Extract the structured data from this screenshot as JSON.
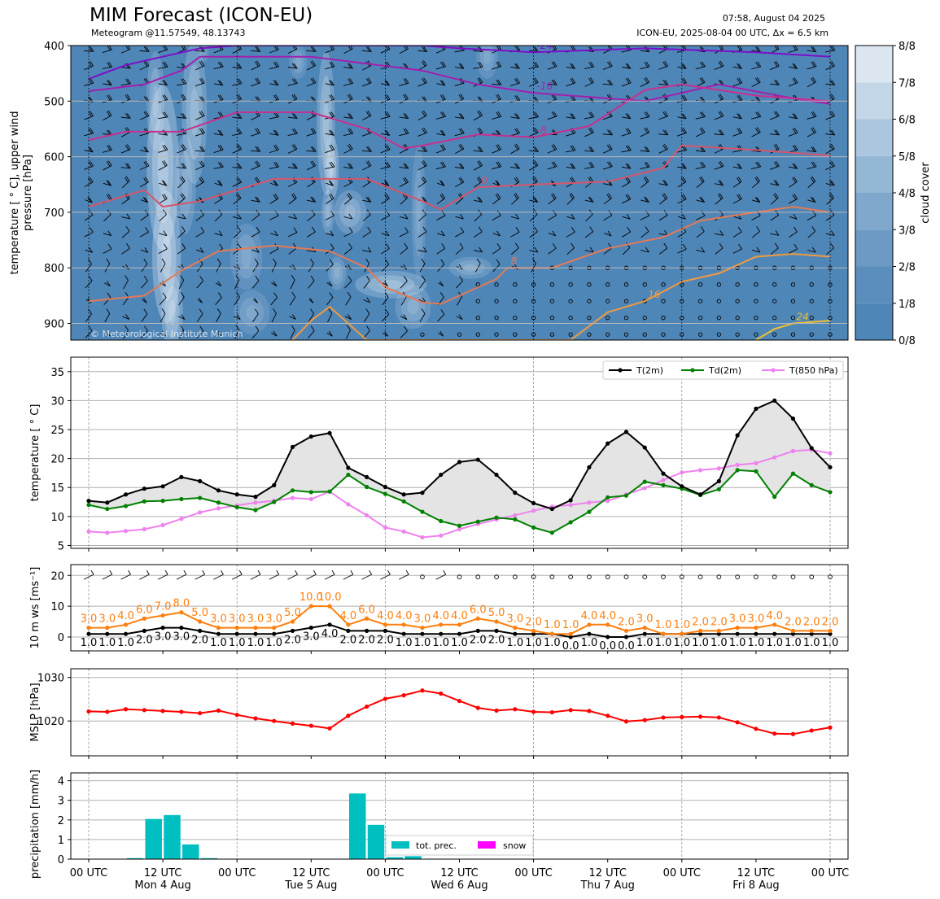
{
  "header": {
    "title": "MIM Forecast (ICON-EU)",
    "subtitle": "Meteogram @11.57549, 48.13743",
    "run_time": "07:58, August 04 2025",
    "run_info": "ICON-EU, 2025-08-04 00 UTC, Δx = 6.5 km",
    "watermark": "© Meteorological Institute Munich"
  },
  "colors": {
    "cloud_base": "#4f86b8",
    "cloud_light": "#e8f0f7",
    "t2m": "#000000",
    "td2m": "#008000",
    "t850": "#ee82ee",
    "wind_max": "#ff7f0e",
    "wind_mean": "#000000",
    "mslp": "#ff0000",
    "precip": "#00bfc0",
    "snow": "#ff00ff"
  },
  "chart_data": [
    {
      "type": "heatmap",
      "name": "upper-air",
      "ylabel": "temperature [$^\\circ$C], upper wind\npressure [hPa]",
      "ylabel_lines": [
        "temperature [ ° C], upper wind",
        "pressure [hPa]"
      ],
      "ylim": [
        930,
        400
      ],
      "yticks": [
        400,
        500,
        600,
        700,
        800,
        900
      ],
      "colorbar_label": "cloud cover",
      "colorbar_ticks": [
        "0/8",
        "1/8",
        "2/8",
        "3/8",
        "4/8",
        "5/8",
        "6/8",
        "7/8",
        "8/8"
      ],
      "isotherms": [
        {
          "label": "-24",
          "color": "#7b10c8",
          "points": [
            [
              0,
              460
            ],
            [
              2,
              435
            ],
            [
              6,
              405
            ],
            [
              8,
              400
            ],
            [
              18,
              400
            ],
            [
              20,
              405
            ],
            [
              24,
              412
            ],
            [
              30,
              405
            ],
            [
              36,
              412
            ],
            [
              40,
              420
            ]
          ]
        },
        {
          "label": "-16",
          "color": "#a31fae",
          "points": [
            [
              0,
              482
            ],
            [
              3,
              470
            ],
            [
              5,
              445
            ],
            [
              6,
              420
            ],
            [
              12,
              420
            ],
            [
              18,
              445
            ],
            [
              21,
              470
            ],
            [
              24,
              485
            ],
            [
              30,
              500
            ],
            [
              32,
              485
            ],
            [
              34,
              470
            ],
            [
              38,
              495
            ],
            [
              40,
              505
            ]
          ]
        },
        {
          "label": "-8",
          "color": "#c8308e",
          "points": [
            [
              0,
              570
            ],
            [
              2,
              555
            ],
            [
              5,
              555
            ],
            [
              8,
              520
            ],
            [
              12,
              520
            ],
            [
              15,
              550
            ],
            [
              17,
              585
            ],
            [
              18,
              580
            ],
            [
              21,
              560
            ],
            [
              24,
              565
            ],
            [
              27,
              545
            ],
            [
              30,
              480
            ],
            [
              32,
              470
            ],
            [
              34,
              480
            ],
            [
              36,
              490
            ],
            [
              40,
              500
            ]
          ]
        },
        {
          "label": "0",
          "color": "#d7556a",
          "points": [
            [
              0,
              690
            ],
            [
              3,
              660
            ],
            [
              4,
              690
            ],
            [
              6,
              680
            ],
            [
              8,
              660
            ],
            [
              10,
              640
            ],
            [
              15,
              640
            ],
            [
              18,
              680
            ],
            [
              19,
              695
            ],
            [
              21,
              655
            ],
            [
              24,
              650
            ],
            [
              28,
              645
            ],
            [
              31,
              620
            ],
            [
              32,
              580
            ],
            [
              36,
              588
            ],
            [
              40,
              598
            ]
          ]
        },
        {
          "label": "8",
          "color": "#e47a55",
          "points": [
            [
              0,
              860
            ],
            [
              3,
              850
            ],
            [
              5,
              805
            ],
            [
              7,
              770
            ],
            [
              10,
              760
            ],
            [
              13,
              770
            ],
            [
              15,
              800
            ],
            [
              16,
              835
            ],
            [
              18,
              862
            ],
            [
              19,
              865
            ],
            [
              21,
              835
            ],
            [
              22,
              820
            ],
            [
              22.6,
              800
            ],
            [
              25,
              800
            ],
            [
              28,
              765
            ],
            [
              31,
              745
            ],
            [
              33,
              715
            ],
            [
              36,
              700
            ],
            [
              38,
              690
            ],
            [
              40,
              700
            ]
          ]
        },
        {
          "label": "16",
          "color": "#f09a40",
          "points": [
            [
              11,
              930
            ],
            [
              12,
              895
            ],
            [
              13,
              870
            ],
            [
              14,
              900
            ],
            [
              15,
              930
            ],
            [
              26,
              930
            ],
            [
              28,
              880
            ],
            [
              30,
              860
            ],
            [
              32,
              825
            ],
            [
              34,
              810
            ],
            [
              36,
              780
            ],
            [
              38,
              775
            ],
            [
              40,
              780
            ]
          ]
        },
        {
          "label": "24",
          "color": "#f0c030",
          "points": [
            [
              36,
              930
            ],
            [
              37,
              910
            ],
            [
              38,
              900
            ],
            [
              40,
              895
            ]
          ]
        }
      ]
    },
    {
      "type": "line",
      "name": "surface-temperature",
      "ylabel": "temperature [$^\\circ$C]",
      "ylim": [
        4.5,
        37.5
      ],
      "yticks": [
        5,
        10,
        15,
        20,
        25,
        30,
        35
      ],
      "legend_position": "top-right",
      "series": [
        {
          "name": "T(2m)",
          "values": [
            12.7,
            12.4,
            13.8,
            14.8,
            15.2,
            16.8,
            16.1,
            14.5,
            13.8,
            13.4,
            15.4,
            22,
            23.8,
            24.4,
            18.4,
            16.8,
            15.1,
            13.8,
            14.1,
            17.2,
            19.4,
            19.8,
            17.2,
            14.1,
            12.3,
            11.3,
            12.8,
            18.5,
            22.6,
            24.6,
            21.9,
            17.4,
            15.2,
            13.8,
            16.1,
            24,
            28.6,
            30,
            26.9,
            21.8,
            18.5
          ]
        },
        {
          "name": "Td(2m)",
          "values": [
            12,
            11.3,
            11.8,
            12.6,
            12.7,
            13,
            13.2,
            12.4,
            11.6,
            11.1,
            12.5,
            14.5,
            14.2,
            14.3,
            17.2,
            15.1,
            13.9,
            12.6,
            10.8,
            9.2,
            8.4,
            9.1,
            9.8,
            9.5,
            8.1,
            7.2,
            9,
            10.8,
            13.3,
            13.6,
            16,
            15.4,
            14.8,
            13.7,
            14.7,
            18,
            17.8,
            13.4,
            17.4,
            15.4,
            14.2
          ]
        },
        {
          "name": "T(850 hPa)",
          "values": [
            7.4,
            7.2,
            7.5,
            7.8,
            8.5,
            9.6,
            10.7,
            11.4,
            11.9,
            12.4,
            12.7,
            13.2,
            13,
            14.3,
            12.1,
            10.2,
            8.1,
            7.4,
            6.4,
            6.7,
            7.8,
            8.7,
            9.5,
            10.2,
            11,
            11.7,
            12,
            12.4,
            12.7,
            13.8,
            14.9,
            16.3,
            17.6,
            18,
            18.3,
            18.9,
            19.2,
            20.2,
            21.3,
            21.5,
            20.9
          ]
        }
      ]
    },
    {
      "type": "line",
      "name": "wind",
      "ylabel": "10 m ws [ms$^{-1}$]",
      "ylim": [
        -4.5,
        23.5
      ],
      "yticks": [
        0,
        10,
        20
      ],
      "series": [
        {
          "name": "max",
          "values": [
            3,
            3,
            4,
            6,
            7,
            8,
            5,
            3,
            3,
            3,
            3,
            5,
            10,
            10,
            4,
            6,
            4,
            4,
            3,
            4,
            4,
            6,
            5,
            3,
            2,
            1,
            1,
            4,
            4,
            2,
            3,
            1,
            1,
            2,
            2,
            3,
            3,
            4,
            2,
            2,
            2
          ],
          "labels": [
            "3.0",
            "3.0",
            "4.0",
            "6.0",
            "7.0",
            "8.0",
            "5.0",
            "3.0",
            "3.0",
            "3.0",
            "3.0",
            "5.0",
            "10.0",
            "10.0",
            "4.0",
            "6.0",
            "4.0",
            "4.0",
            "3.0",
            "4.0",
            "4.0",
            "6.0",
            "5.0",
            "3.0",
            "2.0",
            "1.0",
            "1.0",
            "4.0",
            "4.0",
            "2.0",
            "3.0",
            "1.0",
            "1.0",
            "2.0",
            "2.0",
            "3.0",
            "3.0",
            "4.0",
            "2.0",
            "2.0",
            "2.0"
          ]
        },
        {
          "name": "mean",
          "values": [
            1,
            1,
            1,
            2,
            3,
            3,
            2,
            1,
            1,
            1,
            1,
            2,
            3,
            4,
            2,
            2,
            2,
            1,
            1,
            1,
            1,
            2,
            2,
            1,
            1,
            1,
            0,
            1,
            0,
            0,
            1,
            1,
            1,
            1,
            1,
            1,
            1,
            1,
            1,
            1,
            1
          ],
          "labels": [
            "1.0",
            "1.0",
            "1.0",
            "2.0",
            "3.0",
            "3.0",
            "2.0",
            "1.0",
            "1.0",
            "1.0",
            "1.0",
            "2.0",
            "3.0",
            "4.0",
            "2.0",
            "2.0",
            "2.0",
            "1.0",
            "1.0",
            "1.0",
            "1.0",
            "2.0",
            "2.0",
            "1.0",
            "1.0",
            "1.0",
            "0.0",
            "1.0",
            "0.0",
            "0.0",
            "1.0",
            "1.0",
            "1.0",
            "1.0",
            "1.0",
            "1.0",
            "1.0",
            "1.0",
            "1.0",
            "1.0",
            "1.0"
          ]
        }
      ]
    },
    {
      "type": "line",
      "name": "mslp",
      "ylabel": "MSLP [hPa]",
      "ylim": [
        1012,
        1032
      ],
      "yticks": [
        1020,
        1030
      ],
      "series": [
        {
          "name": "MSLP",
          "values": [
            1022.2,
            1022.1,
            1022.7,
            1022.5,
            1022.3,
            1022.1,
            1021.8,
            1022.4,
            1021.4,
            1020.6,
            1020,
            1019.4,
            1018.9,
            1018.3,
            1021.2,
            1023.3,
            1025.1,
            1025.9,
            1027,
            1026.3,
            1024.6,
            1023,
            1022.4,
            1022.7,
            1022.1,
            1022,
            1022.5,
            1022.3,
            1021.2,
            1019.9,
            1020.2,
            1020.8,
            1020.9,
            1021,
            1020.8,
            1019.7,
            1018.2,
            1017.1,
            1017,
            1017.8,
            1018.5
          ]
        }
      ]
    },
    {
      "type": "bar",
      "name": "precipitation",
      "ylabel": "precipitation [mm/h]",
      "ylim": [
        0,
        4.4
      ],
      "yticks": [
        0,
        1,
        2,
        3,
        4
      ],
      "legend_position": "bottom-center",
      "series": [
        {
          "name": "tot. prec.",
          "values": [
            0,
            0,
            0.05,
            2.05,
            2.25,
            0.75,
            0.05,
            0,
            0,
            0,
            0,
            0,
            0,
            0,
            3.35,
            1.75,
            0.1,
            0.15,
            0,
            0,
            0,
            0,
            0,
            0,
            0,
            0,
            0,
            0,
            0,
            0,
            0,
            0,
            0,
            0,
            0,
            0,
            0,
            0,
            0,
            0,
            0
          ]
        },
        {
          "name": "snow",
          "values": [
            0,
            0,
            0,
            0,
            0,
            0,
            0,
            0,
            0,
            0,
            0,
            0,
            0,
            0,
            0,
            0,
            0,
            0,
            0,
            0,
            0,
            0,
            0,
            0,
            0,
            0,
            0,
            0,
            0,
            0,
            0,
            0,
            0,
            0,
            0,
            0,
            0,
            0,
            0,
            0,
            0
          ]
        }
      ]
    }
  ],
  "x_axis": {
    "tick_labels": [
      "00 UTC",
      "12 UTC",
      "00 UTC",
      "12 UTC",
      "00 UTC",
      "12 UTC",
      "00 UTC",
      "12 UTC",
      "00 UTC",
      "12 UTC",
      "00 UTC"
    ],
    "day_labels": [
      "Mon 4 Aug",
      "Tue 5 Aug",
      "Wed 6 Aug",
      "Thu 7 Aug",
      "Fri 8 Aug"
    ],
    "hours_per_step": 3
  }
}
